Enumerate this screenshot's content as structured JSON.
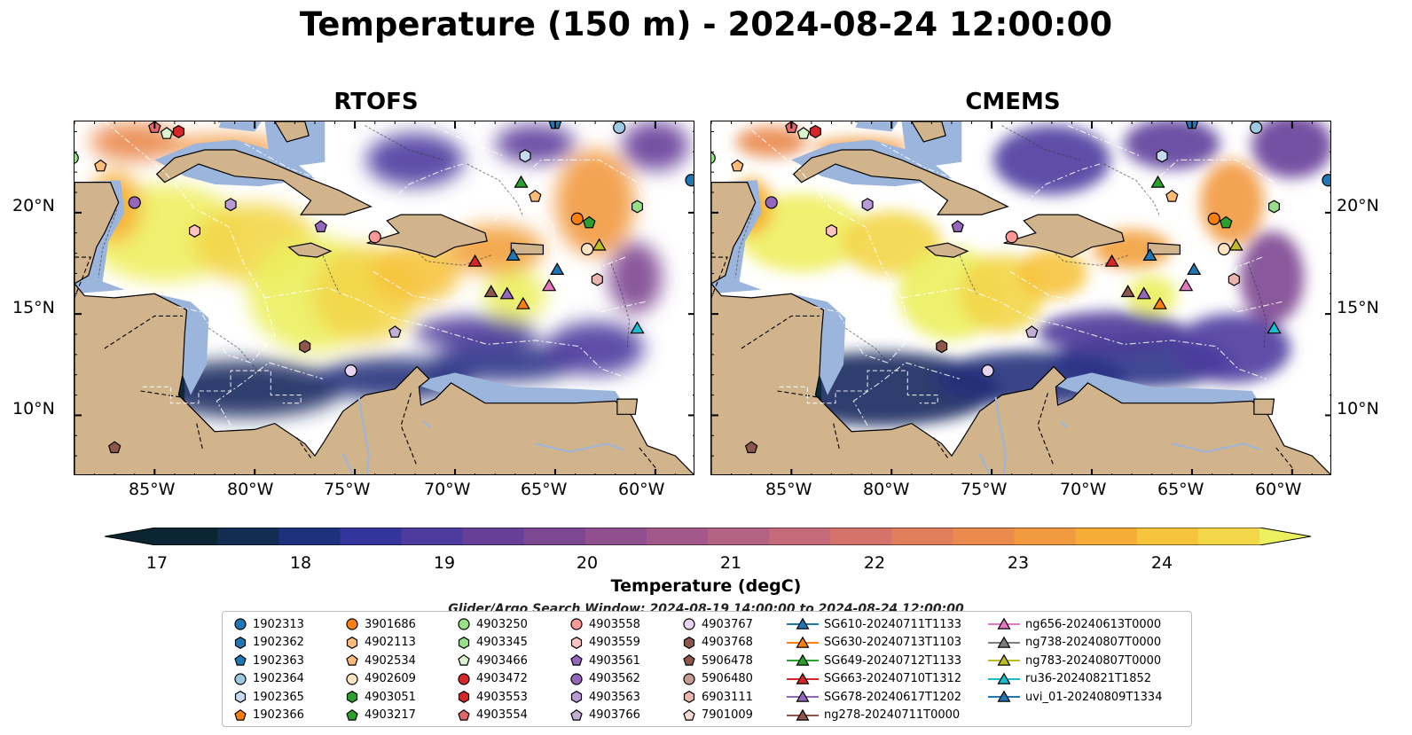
{
  "title": "Temperature (150 m) - 2024-08-24 12:00:00",
  "panels": [
    {
      "title": "RTOFS"
    },
    {
      "title": "CMEMS"
    }
  ],
  "lon_ticks": [
    "85°W",
    "80°W",
    "75°W",
    "70°W",
    "65°W",
    "60°W"
  ],
  "lat_ticks": [
    "20°N",
    "15°N",
    "10°N"
  ],
  "map_extent": {
    "lon": [
      -89,
      -58
    ],
    "lat": [
      7,
      24.5
    ]
  },
  "colorbar": {
    "title": "Temperature (degC)",
    "ticks": [
      "17",
      "18",
      "19",
      "20",
      "21",
      "22",
      "23",
      "24"
    ],
    "range": [
      16.75,
      24.5
    ],
    "colors": [
      "#0c2532",
      "#122c52",
      "#1e317d",
      "#33359c",
      "#4d3c9e",
      "#673f99",
      "#7d4791",
      "#904f8e",
      "#a2588a",
      "#b46282",
      "#c56a78",
      "#d5736b",
      "#e17e5c",
      "#ea8a4d",
      "#f29a40",
      "#f6ad38",
      "#f6c33d",
      "#f3d649",
      "#ecef5e"
    ]
  },
  "search_window": "Glider/Argo Search Window: 2024-08-19 14:00:00 to 2024-08-24 12:00:00",
  "legend": {
    "columns": [
      [
        {
          "label": "1902313",
          "marker": "circle",
          "color": "#1f77b4"
        },
        {
          "label": "1902362",
          "marker": "hexagon",
          "color": "#1f77b4"
        },
        {
          "label": "1902363",
          "marker": "pentagon",
          "color": "#1f77b4"
        },
        {
          "label": "1902364",
          "marker": "circle",
          "color": "#9ecae1"
        },
        {
          "label": "1902365",
          "marker": "hexagon",
          "color": "#c6dbef"
        },
        {
          "label": "1902366",
          "marker": "pentagon",
          "color": "#ff7f0e"
        }
      ],
      [
        {
          "label": "3901686",
          "marker": "circle",
          "color": "#ff7f0e"
        },
        {
          "label": "4902113",
          "marker": "hexagon",
          "color": "#ffbb78"
        },
        {
          "label": "4902534",
          "marker": "pentagon",
          "color": "#ffbb78"
        },
        {
          "label": "4902609",
          "marker": "circle",
          "color": "#ffe4c4"
        },
        {
          "label": "4903051",
          "marker": "hexagon",
          "color": "#2ca02c"
        },
        {
          "label": "4903217",
          "marker": "pentagon",
          "color": "#2ca02c"
        }
      ],
      [
        {
          "label": "4903250",
          "marker": "circle",
          "color": "#98df8a"
        },
        {
          "label": "4903345",
          "marker": "hexagon",
          "color": "#98df8a"
        },
        {
          "label": "4903466",
          "marker": "pentagon",
          "color": "#d8f5d0"
        },
        {
          "label": "4903472",
          "marker": "circle",
          "color": "#d62728"
        },
        {
          "label": "4903553",
          "marker": "hexagon",
          "color": "#d62728"
        },
        {
          "label": "4903554",
          "marker": "pentagon",
          "color": "#e0676a"
        }
      ],
      [
        {
          "label": "4903558",
          "marker": "circle",
          "color": "#ff9896"
        },
        {
          "label": "4903559",
          "marker": "hexagon",
          "color": "#ffc4c2"
        },
        {
          "label": "4903561",
          "marker": "pentagon",
          "color": "#9467bd"
        },
        {
          "label": "4903562",
          "marker": "circle",
          "color": "#9467bd"
        },
        {
          "label": "4903563",
          "marker": "hexagon",
          "color": "#b99ad6"
        },
        {
          "label": "4903766",
          "marker": "pentagon",
          "color": "#c5b0d5"
        }
      ],
      [
        {
          "label": "4903767",
          "marker": "circle",
          "color": "#e8d3f0"
        },
        {
          "label": "4903768",
          "marker": "hexagon",
          "color": "#8c564b"
        },
        {
          "label": "5906478",
          "marker": "pentagon",
          "color": "#8c564b"
        },
        {
          "label": "5906480",
          "marker": "circle",
          "color": "#c49c94"
        },
        {
          "label": "6903111",
          "marker": "hexagon",
          "color": "#e8b6ae"
        },
        {
          "label": "7901009",
          "marker": "pentagon",
          "color": "#fbd9d2"
        }
      ],
      [
        {
          "label": "SG610-20240711T1133",
          "marker": "triangle",
          "color": "#1f77b4"
        },
        {
          "label": "SG630-20240713T1103",
          "marker": "triangle",
          "color": "#ff7f0e"
        },
        {
          "label": "SG649-20240712T1133",
          "marker": "triangle",
          "color": "#2ca02c"
        },
        {
          "label": "SG663-20240710T1312",
          "marker": "triangle",
          "color": "#d62728"
        },
        {
          "label": "SG678-20240617T1202",
          "marker": "triangle",
          "color": "#9467bd"
        },
        {
          "label": "ng278-20240711T0000",
          "marker": "triangle",
          "color": "#8c564b"
        }
      ],
      [
        {
          "label": "ng656-20240613T0000",
          "marker": "triangle",
          "color": "#e377c2"
        },
        {
          "label": "ng738-20240807T0000",
          "marker": "triangle",
          "color": "#7f7f7f"
        },
        {
          "label": "ng783-20240807T0000",
          "marker": "triangle",
          "color": "#bcbd22"
        },
        {
          "label": "ru36-20240821T1852",
          "marker": "triangle",
          "color": "#17becf"
        },
        {
          "label": "uvi_01-20240809T1334",
          "marker": "triangle",
          "color": "#1f77b4"
        }
      ]
    ]
  },
  "markers": [
    {
      "id": "1902313",
      "lon": -58.2,
      "lat": 21.6,
      "marker": "circle",
      "color": "#1f77b4"
    },
    {
      "id": "1902364",
      "lon": -61.8,
      "lat": 24.2,
      "marker": "circle",
      "color": "#9ecae1"
    },
    {
      "id": "1902365",
      "lon": -66.5,
      "lat": 22.8,
      "marker": "hexagon",
      "color": "#c6dbef"
    },
    {
      "id": "1902363",
      "lon": -65.0,
      "lat": 24.4,
      "marker": "pentagon",
      "color": "#1f77b4"
    },
    {
      "id": "4903250",
      "lon": -89.1,
      "lat": 22.7,
      "marker": "circle",
      "color": "#98df8a"
    },
    {
      "id": "4902534",
      "lon": -87.7,
      "lat": 22.3,
      "marker": "pentagon",
      "color": "#ffbb78"
    },
    {
      "id": "4903466",
      "lon": -84.4,
      "lat": 23.9,
      "marker": "pentagon",
      "color": "#d8f5d0"
    },
    {
      "id": "4903553",
      "lon": -83.8,
      "lat": 24.0,
      "marker": "hexagon",
      "color": "#d62728"
    },
    {
      "id": "4903554",
      "lon": -85.0,
      "lat": 24.2,
      "marker": "pentagon",
      "color": "#e0676a"
    },
    {
      "id": "4903562",
      "lon": -86.0,
      "lat": 20.5,
      "marker": "circle",
      "color": "#9467bd"
    },
    {
      "id": "4903563",
      "lon": -81.2,
      "lat": 20.4,
      "marker": "hexagon",
      "color": "#b99ad6"
    },
    {
      "id": "4903559",
      "lon": -83.0,
      "lat": 19.1,
      "marker": "hexagon",
      "color": "#ffc4c2"
    },
    {
      "id": "4903561",
      "lon": -76.7,
      "lat": 19.3,
      "marker": "pentagon",
      "color": "#9467bd"
    },
    {
      "id": "4903558",
      "lon": -74.0,
      "lat": 18.8,
      "marker": "circle",
      "color": "#ff9896"
    },
    {
      "id": "4902534b",
      "lon": -66.0,
      "lat": 20.8,
      "marker": "pentagon",
      "color": "#ffbb78"
    },
    {
      "id": "3901686",
      "lon": -63.9,
      "lat": 19.7,
      "marker": "circle",
      "color": "#ff7f0e"
    },
    {
      "id": "4903217",
      "lon": -63.3,
      "lat": 19.5,
      "marker": "pentagon",
      "color": "#2ca02c"
    },
    {
      "id": "4903345",
      "lon": -60.9,
      "lat": 20.3,
      "marker": "hexagon",
      "color": "#98df8a"
    },
    {
      "id": "4902609",
      "lon": -63.4,
      "lat": 18.2,
      "marker": "circle",
      "color": "#ffe4c4"
    },
    {
      "id": "6903111",
      "lon": -62.9,
      "lat": 16.7,
      "marker": "hexagon",
      "color": "#e8b6ae"
    },
    {
      "id": "4903766",
      "lon": -73.0,
      "lat": 14.1,
      "marker": "pentagon",
      "color": "#c5b0d5"
    },
    {
      "id": "4903768",
      "lon": -77.5,
      "lat": 13.4,
      "marker": "hexagon",
      "color": "#8c564b"
    },
    {
      "id": "4903767",
      "lon": -75.2,
      "lat": 12.2,
      "marker": "circle",
      "color": "#e8d3f0"
    },
    {
      "id": "5906478",
      "lon": -87.0,
      "lat": 8.4,
      "marker": "pentagon",
      "color": "#8c564b"
    },
    {
      "id": "SG649",
      "lon": -66.7,
      "lat": 21.5,
      "marker": "triangle",
      "color": "#2ca02c"
    },
    {
      "id": "SG610",
      "lon": -67.1,
      "lat": 17.9,
      "marker": "triangle",
      "color": "#1f77b4"
    },
    {
      "id": "SG663",
      "lon": -69.0,
      "lat": 17.6,
      "marker": "triangle",
      "color": "#d62728"
    },
    {
      "id": "uvi_01",
      "lon": -64.9,
      "lat": 17.2,
      "marker": "triangle",
      "color": "#1f77b4"
    },
    {
      "id": "ng783",
      "lon": -62.8,
      "lat": 18.4,
      "marker": "triangle",
      "color": "#bcbd22"
    },
    {
      "id": "ng656",
      "lon": -65.3,
      "lat": 16.4,
      "marker": "triangle",
      "color": "#e377c2"
    },
    {
      "id": "ng278",
      "lon": -68.2,
      "lat": 16.1,
      "marker": "triangle",
      "color": "#8c564b"
    },
    {
      "id": "SG678",
      "lon": -67.4,
      "lat": 16.0,
      "marker": "triangle",
      "color": "#9467bd"
    },
    {
      "id": "SG630",
      "lon": -66.6,
      "lat": 15.5,
      "marker": "triangle",
      "color": "#ff7f0e"
    },
    {
      "id": "ru36",
      "lon": -60.9,
      "lat": 14.3,
      "marker": "triangle",
      "color": "#17becf"
    }
  ]
}
